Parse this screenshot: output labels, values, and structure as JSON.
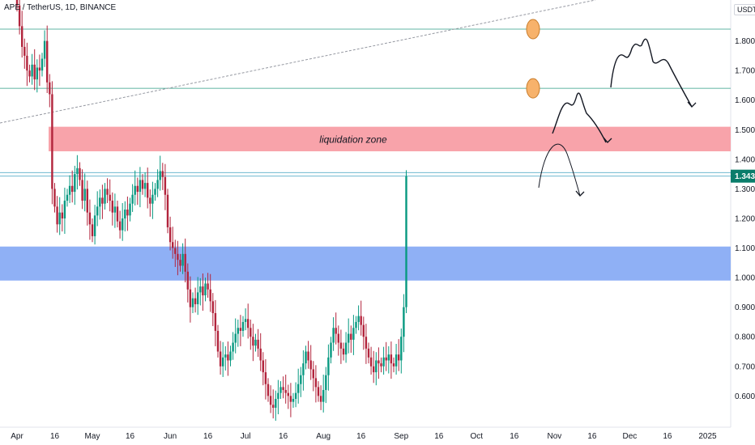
{
  "header": {
    "symbol_line": "APE / TetherUS, 1D, BINANCE"
  },
  "axis": {
    "unit": "USDT"
  },
  "colors": {
    "up": "#089981",
    "down": "#b2243c",
    "liq_zone": "#f8a3aa",
    "blue_zone": "#8fb0f5",
    "last_price": "#0a7d6b"
  },
  "annotations": {
    "liquidation_label": "liquidation zone",
    "last_price_label": "1.343"
  },
  "chart_data": {
    "type": "candlestick",
    "title": "",
    "ylim": [
      0.52,
      1.98
    ],
    "y_ticks": [
      "1.800",
      "1.700",
      "1.600",
      "1.500",
      "1.400",
      "1.300",
      "1.200",
      "1.100",
      "1.000",
      "0.900",
      "0.800",
      "0.700",
      "0.600"
    ],
    "y_tick_values": [
      1.8,
      1.7,
      1.6,
      1.5,
      1.4,
      1.3,
      1.2,
      1.1,
      1.0,
      0.9,
      0.8,
      0.7,
      0.6
    ],
    "x_tick_labels": [
      "Apr",
      "16",
      "May",
      "16",
      "Jun",
      "16",
      "Jul",
      "16",
      "Aug",
      "16",
      "Sep",
      "16",
      "Oct",
      "16",
      "Nov",
      "16",
      "Dec",
      "16",
      "2025"
    ],
    "x_tick_days": [
      0,
      15,
      30,
      45,
      61,
      76,
      91,
      106,
      122,
      137,
      153,
      168,
      183,
      198,
      214,
      229,
      244,
      259,
      275
    ],
    "series_start": "2024-03-31",
    "closes": [
      1.92,
      1.85,
      1.78,
      1.75,
      1.7,
      1.68,
      1.72,
      1.67,
      1.71,
      1.7,
      1.74,
      1.8,
      1.66,
      1.62,
      1.3,
      1.24,
      1.18,
      1.22,
      1.2,
      1.26,
      1.28,
      1.31,
      1.29,
      1.35,
      1.37,
      1.33,
      1.26,
      1.3,
      1.22,
      1.18,
      1.14,
      1.21,
      1.24,
      1.27,
      1.25,
      1.3,
      1.28,
      1.26,
      1.22,
      1.24,
      1.19,
      1.16,
      1.2,
      1.23,
      1.21,
      1.25,
      1.28,
      1.31,
      1.29,
      1.33,
      1.3,
      1.32,
      1.27,
      1.25,
      1.28,
      1.3,
      1.33,
      1.36,
      1.34,
      1.28,
      1.17,
      1.12,
      1.1,
      1.08,
      1.06,
      1.04,
      1.08,
      1.02,
      0.96,
      0.9,
      0.93,
      0.91,
      0.95,
      0.97,
      0.94,
      0.98,
      0.96,
      0.92,
      0.88,
      0.82,
      0.75,
      0.7,
      0.73,
      0.74,
      0.72,
      0.75,
      0.78,
      0.81,
      0.83,
      0.82,
      0.85,
      0.86,
      0.83,
      0.8,
      0.77,
      0.79,
      0.76,
      0.72,
      0.68,
      0.64,
      0.6,
      0.57,
      0.56,
      0.59,
      0.61,
      0.63,
      0.62,
      0.61,
      0.6,
      0.58,
      0.59,
      0.61,
      0.64,
      0.67,
      0.71,
      0.75,
      0.72,
      0.69,
      0.66,
      0.63,
      0.6,
      0.58,
      0.62,
      0.67,
      0.73,
      0.78,
      0.83,
      0.81,
      0.78,
      0.76,
      0.74,
      0.78,
      0.81,
      0.79,
      0.83,
      0.85,
      0.87,
      0.84,
      0.8,
      0.76,
      0.73,
      0.7,
      0.68,
      0.72,
      0.71,
      0.7,
      0.73,
      0.72,
      0.74,
      0.71,
      0.7,
      0.74,
      0.72,
      0.8,
      0.9,
      1.343
    ]
  }
}
